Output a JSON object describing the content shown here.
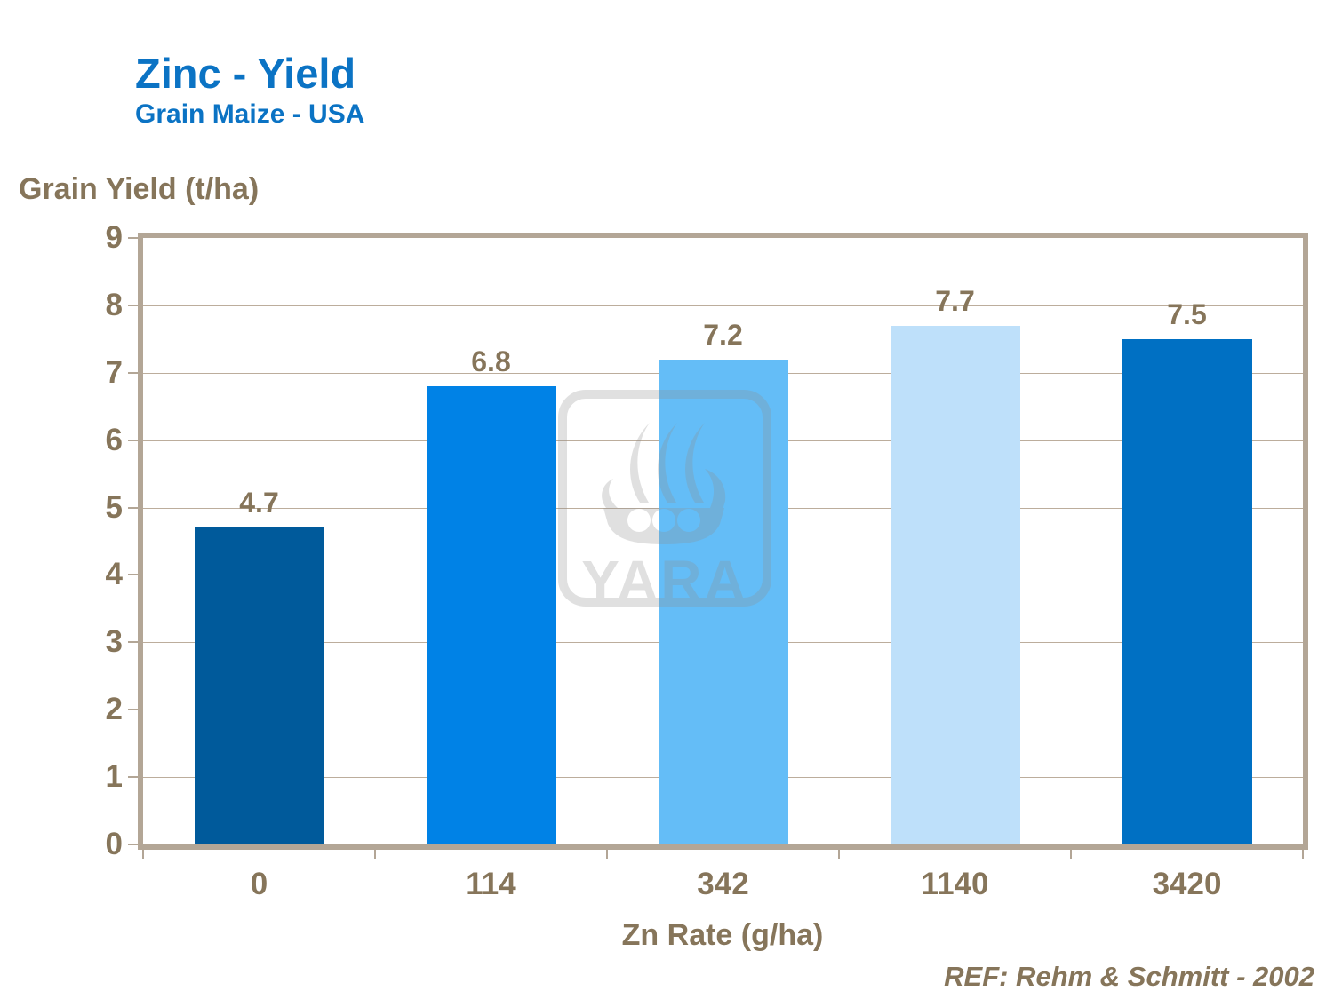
{
  "header": {
    "title": "Zinc - Yield",
    "subtitle": "Grain Maize - USA"
  },
  "footer": {
    "reference": "REF: Rehm & Schmitt - 2002"
  },
  "watermark": {
    "icon": "yara-viking-ship-logo",
    "text": "YARA"
  },
  "colors": {
    "title_blue": "#0B73C4",
    "text_brown": "#86755A",
    "gridline": "#BCAD9C",
    "frame_tan": "#B3A696",
    "watermark_gray": "#8F8F8F"
  },
  "chart_data": {
    "type": "bar",
    "title": "Zinc - Yield",
    "subtitle": "Grain Maize - USA",
    "categories": [
      "0",
      "114",
      "342",
      "1140",
      "3420"
    ],
    "values": [
      4.7,
      6.8,
      7.2,
      7.7,
      7.5
    ],
    "value_labels": [
      "4.7",
      "6.8",
      "7.2",
      "7.7",
      "7.5"
    ],
    "bar_colors": [
      "#005A9B",
      "#0082E6",
      "#64BDF7",
      "#BEE0FA",
      "#0070C3"
    ],
    "xlabel": "Zn Rate (g/ha)",
    "ylabel": "Grain Yield (t/ha)",
    "ylim": [
      0,
      9
    ],
    "yticks": [
      0,
      1,
      2,
      3,
      4,
      5,
      6,
      7,
      8,
      9
    ],
    "grid": "horizontal",
    "legend": "none"
  }
}
